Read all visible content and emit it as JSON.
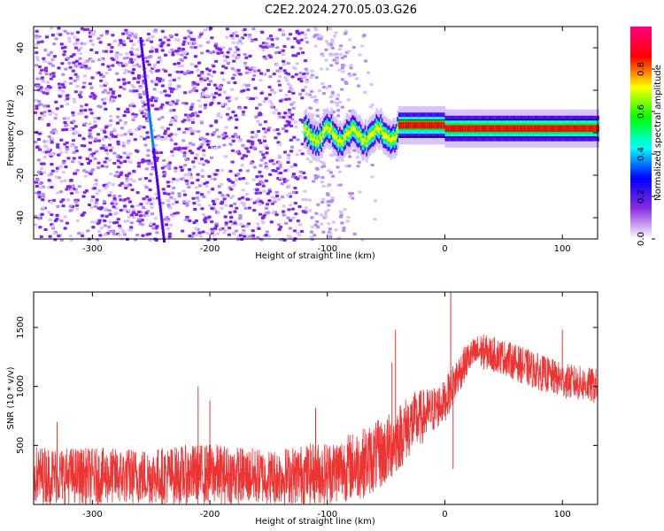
{
  "title": "C2E2.2024.270.05.03.G26",
  "chart_data": [
    {
      "type": "heatmap",
      "xlabel": "Height of straight line (km)",
      "ylabel": "Frequency (Hz)",
      "xlim": [
        -350,
        130
      ],
      "ylim": [
        -50,
        50
      ],
      "xticks": [
        -300,
        -200,
        -100,
        0,
        100
      ],
      "yticks": [
        -40,
        -20,
        0,
        20,
        40
      ],
      "colorbar": {
        "label": "Normalized spectral amplitude",
        "range": [
          0,
          1
        ],
        "ticks": [
          0.0,
          0.2,
          0.4,
          0.6,
          0.8
        ],
        "colormap": [
          "#ffffff",
          "#8a2be2",
          "#0000ff",
          "#00ffff",
          "#00ff00",
          "#ffff00",
          "#ff0000",
          "#ff0080"
        ]
      },
      "band": {
        "x_start": -120,
        "x_end": 130,
        "freq": 2,
        "description": "coherent signal band near 0-5 Hz"
      },
      "noise_region": {
        "x_start": -350,
        "x_end": -60
      }
    },
    {
      "type": "line",
      "xlabel": "Height of straight line (km)",
      "ylabel": "SNR (10 * v/v)",
      "xlim": [
        -350,
        130
      ],
      "ylim": [
        0,
        1800
      ],
      "xticks": [
        -300,
        -200,
        -100,
        0,
        100
      ],
      "yticks": [
        500,
        1000,
        1500
      ],
      "color": "#ee3333",
      "envelope": {
        "x": [
          -350,
          -300,
          -250,
          -200,
          -150,
          -100,
          -70,
          -50,
          -30,
          -10,
          0,
          10,
          20,
          30,
          50,
          70,
          100,
          130
        ],
        "lo": [
          0,
          0,
          0,
          0,
          0,
          0,
          50,
          150,
          400,
          600,
          700,
          900,
          1100,
          1150,
          1100,
          1000,
          900,
          850
        ],
        "hi": [
          500,
          480,
          480,
          520,
          470,
          540,
          650,
          750,
          950,
          1000,
          1050,
          1250,
          1380,
          1450,
          1400,
          1320,
          1200,
          1150
        ]
      },
      "spikes": [
        {
          "x": -330,
          "y": 700
        },
        {
          "x": -210,
          "y": 1000
        },
        {
          "x": -200,
          "y": 880
        },
        {
          "x": -110,
          "y": 820
        },
        {
          "x": -42,
          "y": 1480
        },
        {
          "x": -45,
          "y": 1200
        },
        {
          "x": 5,
          "y": 1800
        },
        {
          "x": 7,
          "y": 300
        },
        {
          "x": 100,
          "y": 1480
        }
      ]
    }
  ]
}
